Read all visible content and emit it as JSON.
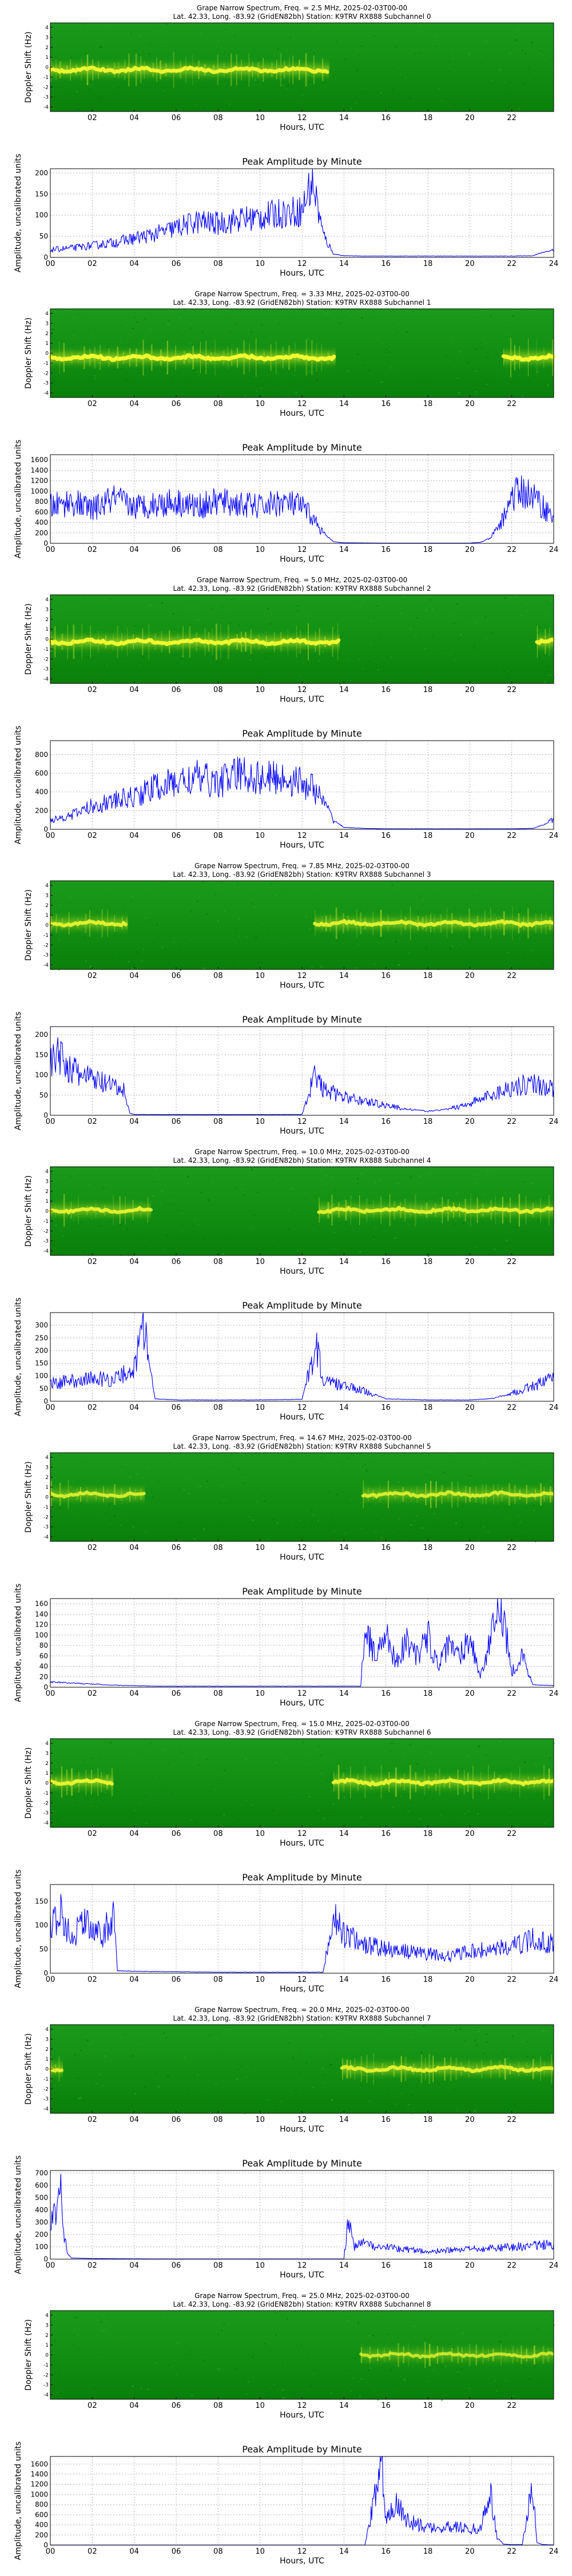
{
  "title_prefix": "Grape Narrow Spectrum, Freq. = ",
  "title_date": ", 2025-02-03T00-00",
  "subtitle_prefix": "Lat.  42.33, Long. -83.92 (GridEN82bh) Station: K9TRV RX888 Subchannel ",
  "peak_title": "Peak Amplitude by Minute",
  "xlabel": "Hours, UTC",
  "spec_ylabel": "Doppler Shift (Hz)",
  "amp_ylabel": "Amplitude, uncalibrated units",
  "spec_xticks": [
    "02",
    "04",
    "06",
    "08",
    "10",
    "12",
    "14",
    "16",
    "18",
    "20",
    "22"
  ],
  "amp_xticks": [
    "00",
    "02",
    "04",
    "06",
    "08",
    "10",
    "12",
    "14",
    "16",
    "18",
    "20",
    "22",
    "24"
  ],
  "spec_yticks": [
    "4",
    "3",
    "2",
    "1",
    "0",
    "-1",
    "-2",
    "-3",
    "-4"
  ],
  "colors": {
    "line": "#0000ff",
    "spec_bg": "#0e8a0e",
    "spec_trace": "#f2f21a",
    "grid": "#b0b0b0"
  },
  "chart_data": [
    {
      "type": "heatmap",
      "subchannel": "0",
      "freq": "2.5 MHz",
      "trace_hz": -0.3,
      "active": [
        [
          0,
          13.3
        ]
      ],
      "intensity": 0.85,
      "xlim": [
        0,
        24
      ],
      "ylim": [
        -5,
        5
      ]
    },
    {
      "type": "line",
      "subchannel": "0",
      "ylim": [
        0,
        210
      ],
      "yticks": [
        0,
        50,
        100,
        150,
        200
      ],
      "x": [
        0,
        1,
        2,
        3,
        4,
        5,
        6,
        7,
        8,
        9,
        10,
        11,
        12,
        12.5,
        13,
        13.5,
        14,
        15,
        16,
        17,
        18,
        19,
        20,
        21,
        22,
        23,
        23.5,
        24
      ],
      "y": [
        18,
        22,
        28,
        35,
        45,
        55,
        70,
        85,
        80,
        90,
        95,
        105,
        110,
        185,
        55,
        8,
        4,
        3,
        3,
        3,
        3,
        3,
        3,
        3,
        3,
        4,
        12,
        18
      ]
    },
    {
      "type": "heatmap",
      "subchannel": "1",
      "freq": "3.33 MHz",
      "trace_hz": -0.5,
      "active": [
        [
          0,
          13.6
        ],
        [
          21.6,
          24
        ]
      ],
      "intensity": 0.95,
      "xlim": [
        0,
        24
      ],
      "ylim": [
        -5,
        5
      ]
    },
    {
      "type": "line",
      "subchannel": "1",
      "ylim": [
        0,
        1700
      ],
      "yticks": [
        0,
        200,
        400,
        600,
        800,
        1000,
        1200,
        1400,
        1600
      ],
      "x": [
        0,
        1,
        2,
        3,
        4,
        5,
        6,
        7,
        8,
        9,
        10,
        11,
        12,
        12.5,
        13,
        13.5,
        14,
        16,
        18,
        20,
        20.5,
        21,
        21.5,
        22,
        22.5,
        23,
        23.5,
        24
      ],
      "y": [
        700,
        800,
        650,
        850,
        700,
        750,
        800,
        700,
        800,
        750,
        700,
        800,
        700,
        500,
        200,
        30,
        10,
        5,
        5,
        5,
        20,
        100,
        400,
        900,
        1000,
        900,
        700,
        500
      ]
    },
    {
      "type": "heatmap",
      "subchannel": "2",
      "freq": "5.0 MHz",
      "trace_hz": -0.3,
      "active": [
        [
          0,
          13.8
        ],
        [
          23.2,
          24
        ]
      ],
      "intensity": 0.9,
      "xlim": [
        0,
        24
      ],
      "ylim": [
        -5,
        5
      ]
    },
    {
      "type": "line",
      "subchannel": "2",
      "ylim": [
        0,
        950
      ],
      "yticks": [
        0,
        200,
        400,
        600,
        800
      ],
      "x": [
        0,
        1,
        2,
        3,
        4,
        5,
        6,
        7,
        8,
        9,
        10,
        11,
        12,
        12.5,
        13,
        13.5,
        14,
        15,
        16,
        17,
        18,
        19,
        20,
        21,
        22,
        23,
        23.5,
        24
      ],
      "y": [
        100,
        150,
        250,
        300,
        350,
        450,
        500,
        550,
        500,
        600,
        550,
        550,
        500,
        450,
        300,
        100,
        20,
        10,
        5,
        5,
        5,
        5,
        5,
        5,
        5,
        10,
        50,
        100
      ]
    },
    {
      "type": "heatmap",
      "subchannel": "3",
      "freq": "7.85 MHz",
      "trace_hz": 0.2,
      "active": [
        [
          0,
          3.7
        ],
        [
          12.6,
          24
        ]
      ],
      "intensity": 0.75,
      "xlim": [
        0,
        24
      ],
      "ylim": [
        -5,
        5
      ]
    },
    {
      "type": "line",
      "subchannel": "3",
      "ylim": [
        0,
        220
      ],
      "yticks": [
        0,
        50,
        100,
        150,
        200
      ],
      "x": [
        0,
        0.5,
        1,
        1.5,
        2,
        2.5,
        3,
        3.5,
        3.8,
        4,
        6,
        8,
        10,
        12,
        12.6,
        13,
        14,
        15,
        16,
        17,
        18,
        19,
        20,
        21,
        22,
        23,
        24
      ],
      "y": [
        130,
        150,
        110,
        100,
        90,
        80,
        70,
        60,
        5,
        2,
        2,
        2,
        2,
        2,
        100,
        65,
        45,
        35,
        25,
        15,
        10,
        15,
        30,
        50,
        70,
        80,
        65
      ]
    },
    {
      "type": "heatmap",
      "subchannel": "4",
      "freq": "10.0 MHz",
      "trace_hz": 0.1,
      "active": [
        [
          0,
          4.8
        ],
        [
          12.8,
          24
        ]
      ],
      "intensity": 0.75,
      "xlim": [
        0,
        24
      ],
      "ylim": [
        -5,
        5
      ]
    },
    {
      "type": "line",
      "subchannel": "4",
      "ylim": [
        0,
        350
      ],
      "yticks": [
        0,
        50,
        100,
        150,
        200,
        250,
        300
      ],
      "x": [
        0,
        1,
        2,
        3,
        4,
        4.5,
        4.7,
        5,
        6,
        8,
        10,
        12,
        12.7,
        13,
        14,
        15,
        16,
        18,
        20,
        21,
        22,
        23,
        24
      ],
      "y": [
        70,
        80,
        90,
        85,
        130,
        320,
        150,
        10,
        5,
        5,
        5,
        8,
        220,
        80,
        60,
        40,
        10,
        5,
        5,
        10,
        30,
        60,
        90
      ]
    },
    {
      "type": "heatmap",
      "subchannel": "5",
      "freq": "14.67 MHz",
      "trace_hz": 0.3,
      "active": [
        [
          0,
          4.5
        ],
        [
          14.9,
          24
        ]
      ],
      "intensity": 0.65,
      "xlim": [
        0,
        24
      ],
      "ylim": [
        -5,
        5
      ]
    },
    {
      "type": "line",
      "subchannel": "5",
      "ylim": [
        0,
        170
      ],
      "yticks": [
        0,
        20,
        40,
        60,
        80,
        100,
        120,
        140,
        160
      ],
      "x": [
        0,
        1,
        2,
        3,
        4,
        5,
        6,
        8,
        10,
        12,
        14,
        14.8,
        15,
        15.5,
        16,
        16.5,
        17,
        17.5,
        18,
        18.5,
        19,
        19.5,
        20,
        20.5,
        21,
        21.5,
        22,
        22.5,
        23,
        24
      ],
      "y": [
        10,
        8,
        6,
        4,
        3,
        2,
        2,
        2,
        2,
        2,
        2,
        2,
        110,
        60,
        100,
        50,
        90,
        60,
        100,
        40,
        80,
        60,
        100,
        20,
        90,
        165,
        30,
        60,
        5,
        3
      ]
    },
    {
      "type": "heatmap",
      "subchannel": "6",
      "freq": "15.0 MHz",
      "trace_hz": 0.1,
      "active": [
        [
          0,
          3.0
        ],
        [
          13.5,
          24
        ]
      ],
      "intensity": 0.8,
      "xlim": [
        0,
        24
      ],
      "ylim": [
        -5,
        5
      ]
    },
    {
      "type": "line",
      "subchannel": "6",
      "ylim": [
        0,
        185
      ],
      "yticks": [
        0,
        50,
        100,
        150
      ],
      "x": [
        0,
        0.5,
        1,
        1.5,
        2,
        2.5,
        3,
        3.2,
        4,
        6,
        8,
        10,
        12,
        13,
        13.5,
        14,
        15,
        16,
        17,
        18,
        19,
        20,
        21,
        22,
        23,
        24
      ],
      "y": [
        100,
        130,
        70,
        110,
        90,
        80,
        120,
        5,
        4,
        3,
        2,
        2,
        2,
        2,
        120,
        80,
        60,
        50,
        45,
        40,
        35,
        45,
        50,
        55,
        70,
        60
      ]
    },
    {
      "type": "heatmap",
      "subchannel": "7",
      "freq": "20.0 MHz",
      "trace_hz": 0.0,
      "active": [
        [
          0,
          0.6
        ],
        [
          13.9,
          24
        ]
      ],
      "intensity": 0.75,
      "xlim": [
        0,
        24
      ],
      "ylim": [
        -5,
        5
      ]
    },
    {
      "type": "line",
      "subchannel": "7",
      "ylim": [
        0,
        720
      ],
      "yticks": [
        0,
        100,
        200,
        300,
        400,
        500,
        600,
        700
      ],
      "x": [
        0,
        0.3,
        0.5,
        0.6,
        0.8,
        1,
        2,
        4,
        6,
        8,
        10,
        12,
        13,
        14,
        14.2,
        14.5,
        15,
        15.5,
        16,
        17,
        18,
        19,
        20,
        21,
        22,
        23,
        24
      ],
      "y": [
        300,
        380,
        650,
        280,
        50,
        10,
        5,
        3,
        2,
        2,
        2,
        2,
        2,
        2,
        350,
        100,
        150,
        80,
        100,
        80,
        60,
        70,
        80,
        90,
        100,
        110,
        120
      ]
    },
    {
      "type": "heatmap",
      "subchannel": "8",
      "freq": "25.0 MHz",
      "trace_hz": 0.0,
      "active": [
        [
          14.8,
          24
        ]
      ],
      "intensity": 0.55,
      "xlim": [
        0,
        24
      ],
      "ylim": [
        -5,
        5
      ]
    },
    {
      "type": "line",
      "subchannel": "8",
      "ylim": [
        0,
        1750
      ],
      "yticks": [
        0,
        200,
        400,
        600,
        800,
        1000,
        1200,
        1400,
        1600
      ],
      "x": [
        0,
        2,
        4,
        6,
        8,
        10,
        12,
        14,
        15,
        15.8,
        16,
        16.5,
        17,
        17.5,
        18,
        18.5,
        19,
        19.5,
        20,
        20.5,
        21,
        21.3,
        21.6,
        22,
        22.5,
        23,
        23.2,
        23.5,
        24
      ],
      "y": [
        2,
        2,
        2,
        2,
        2,
        2,
        2,
        2,
        2,
        1600,
        600,
        800,
        500,
        400,
        350,
        300,
        400,
        350,
        300,
        350,
        1000,
        150,
        20,
        10,
        10,
        1200,
        50,
        10,
        5
      ]
    }
  ]
}
